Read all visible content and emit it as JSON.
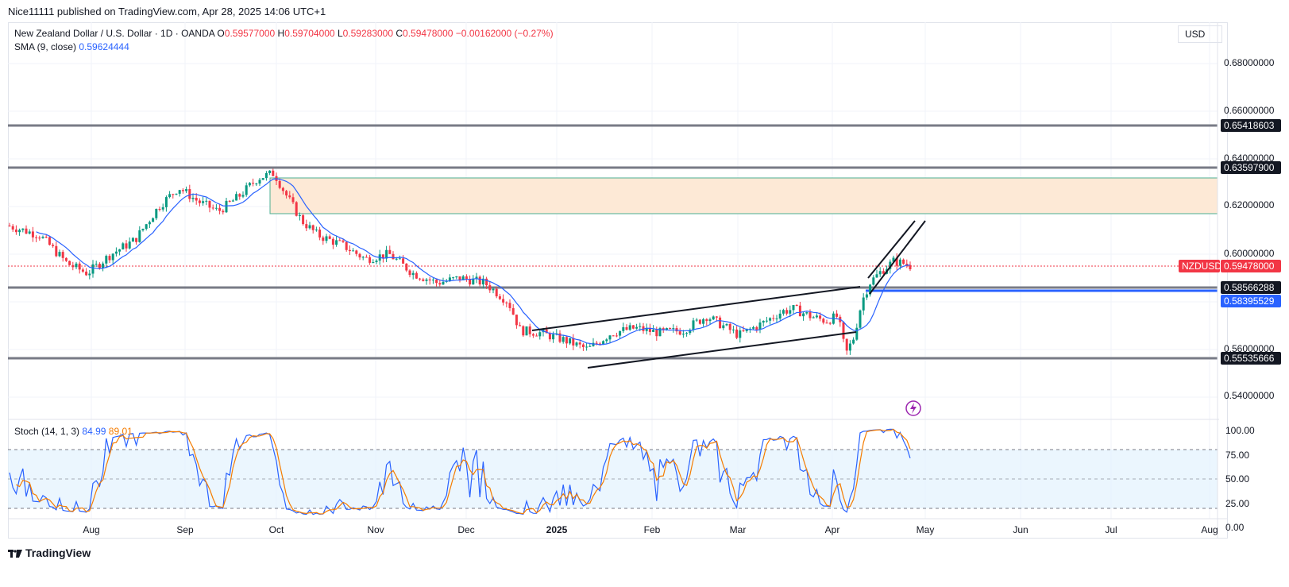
{
  "header": {
    "published": "Nice11111 published on TradingView.com, Apr 28, 2025 14:06 UTC+1"
  },
  "legend": {
    "symbol": "New Zealand Dollar / U.S. Dollar · 1D · OANDA",
    "o_label": "O",
    "o_value": "0.59577000",
    "h_label": "H",
    "h_value": "0.59704000",
    "l_label": "L",
    "l_value": "0.59283000",
    "c_label": "C",
    "c_value": "0.59478000",
    "change": "−0.00162000 (−0.27%)",
    "sma_label": "SMA (9, close)",
    "sma_value": "0.59624444",
    "stoch_label": "Stoch (14, 1, 3)",
    "stoch_k": "84.99",
    "stoch_d": "89.01"
  },
  "currency": "USD",
  "price_axis": {
    "ticks": [
      "0.68000000",
      "0.66000000",
      "0.64000000",
      "0.62000000",
      "0.60000000",
      "0.56000000",
      "0.54000000"
    ],
    "levels": [
      {
        "value": "0.65418603",
        "color": "#131722"
      },
      {
        "value": "0.63597900",
        "color": "#131722"
      },
      {
        "value": "0.58566288",
        "color": "#131722"
      },
      {
        "value": "0.58395529",
        "color": "#2962ff"
      },
      {
        "value": "0.55535666",
        "color": "#131722"
      }
    ],
    "symbol_badge": "NZDUSD",
    "last_price": "0.59478000"
  },
  "stoch_axis": {
    "ticks": [
      "100.00",
      "75.00",
      "50.00",
      "25.00",
      "0.00"
    ]
  },
  "time_axis": {
    "ticks": [
      "Aug",
      "Sep",
      "Oct",
      "Nov",
      "Dec",
      "2025",
      "Feb",
      "Mar",
      "Apr",
      "May",
      "Jun",
      "Jul",
      "Aug"
    ]
  },
  "footer": {
    "brand": "TradingView"
  },
  "colors": {
    "up": "#089981",
    "down": "#f23645",
    "sma": "#2962ff",
    "stoch_k": "#2962ff",
    "stoch_d": "#f57c00",
    "zone": "#fde9d6"
  },
  "chart_data": {
    "type": "candlestick",
    "symbol": "NZDUSD",
    "interval": "1D",
    "x_range": [
      "2024-07",
      "2025-08"
    ],
    "y_range": [
      0.535,
      0.69
    ],
    "horizontal_levels": [
      0.65418603,
      0.635979,
      0.58566288,
      0.58395529,
      0.55535666
    ],
    "supply_zone": [
      0.6165,
      0.632
    ],
    "close_path": [
      {
        "date": "Jul",
        "close": 0.612
      },
      {
        "date": "Aug",
        "close": 0.592
      },
      {
        "date": "Sep",
        "close": 0.626
      },
      {
        "date": "Oct",
        "close": 0.635
      },
      {
        "date": "Nov",
        "close": 0.598
      },
      {
        "date": "Dec",
        "close": 0.583
      },
      {
        "date": "2025",
        "close": 0.562
      },
      {
        "date": "Feb",
        "close": 0.566
      },
      {
        "date": "Mar",
        "close": 0.573
      },
      {
        "date": "Apr",
        "close": 0.555
      },
      {
        "date": "Apr 28",
        "close": 0.59478
      }
    ],
    "stochastic": {
      "k": 84.99,
      "d": 89.01,
      "levels": [
        80,
        50,
        20
      ]
    }
  }
}
